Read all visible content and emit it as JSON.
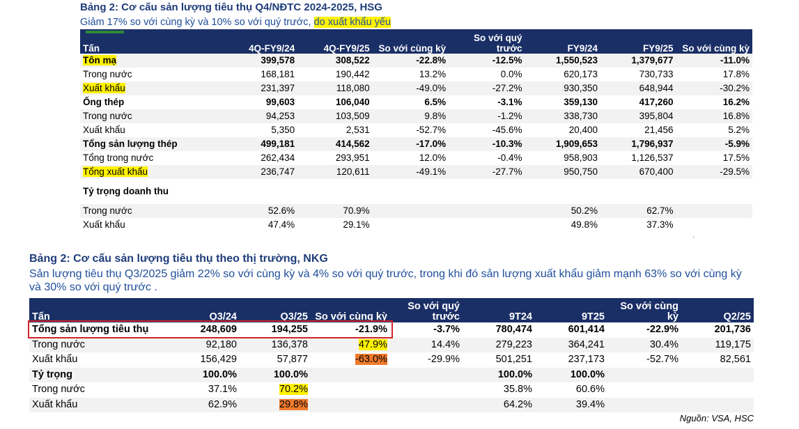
{
  "table1": {
    "title": "Bảng 2: Cơ cấu sản lượng tiêu thụ Q4/NĐTC 2024-2025, HSG",
    "subtitle_plain": "Giảm 17% so với cùng kỳ và 10% so với quý trước, ",
    "subtitle_highlight": "do xuất khẩu yếu",
    "headers": [
      "Tấn",
      "4Q-FY9/24",
      "4Q-FY9/25",
      "So với cùng kỳ",
      "So với quý trước",
      "FY9/24",
      "FY9/25",
      "So với cùng kỳ"
    ],
    "rows": [
      {
        "label": "Tôn mạ",
        "cells": [
          "399,578",
          "308,522",
          "-22.8%",
          "-12.5%",
          "1,550,523",
          "1,379,677",
          "-11.0%"
        ]
      },
      {
        "label": "Trong nước",
        "cells": [
          "168,181",
          "190,442",
          "13.2%",
          "0.0%",
          "620,173",
          "730,733",
          "17.8%"
        ]
      },
      {
        "label": "Xuất khẩu",
        "cells": [
          "231,397",
          "118,080",
          "-49.0%",
          "-27.2%",
          "930,350",
          "648,944",
          "-30.2%"
        ]
      },
      {
        "label": "Ống thép",
        "cells": [
          "99,603",
          "106,040",
          "6.5%",
          "-3.1%",
          "359,130",
          "417,260",
          "16.2%"
        ]
      },
      {
        "label": "Trong nước",
        "cells": [
          "94,253",
          "103,509",
          "9.8%",
          "-1.2%",
          "338,730",
          "395,804",
          "16.8%"
        ]
      },
      {
        "label": "Xuất khẩu",
        "cells": [
          "5,350",
          "2,531",
          "-52.7%",
          "-45.6%",
          "20,400",
          "21,456",
          "5.2%"
        ]
      },
      {
        "label": "Tổng sản lượng thép",
        "cells": [
          "499,181",
          "414,562",
          "-17.0%",
          "-10.3%",
          "1,909,653",
          "1,796,937",
          "-5.9%"
        ]
      },
      {
        "label": "Tổng trong nước",
        "cells": [
          "262,434",
          "293,951",
          "12.0%",
          "-0.4%",
          "958,903",
          "1,126,537",
          "17.5%"
        ]
      },
      {
        "label": "Tổng xuất khẩu",
        "cells": [
          "236,747",
          "120,611",
          "-49.1%",
          "-27.7%",
          "950,750",
          "670,400",
          "-29.5%"
        ]
      },
      {
        "label": "Tỷ trọng doanh thu",
        "cells": [
          "",
          "",
          "",
          "",
          "",
          "",
          ""
        ]
      },
      {
        "label": "Trong nước",
        "cells": [
          "52.6%",
          "70.9%",
          "",
          "",
          "50.2%",
          "62.7%",
          ""
        ]
      },
      {
        "label": "Xuất khẩu",
        "cells": [
          "47.4%",
          "29.1%",
          "",
          "",
          "49.8%",
          "37.3%",
          ""
        ]
      }
    ]
  },
  "table2": {
    "title": "Bảng 2: Cơ cấu sản lượng tiêu thụ theo thị trường, NKG",
    "subtitle": "Sản lượng tiêu thụ Q3/2025 giảm 22% so với cùng kỳ và 4% so với quý trước, trong khi đó sản lượng xuất khẩu giảm mạnh 63% so với cùng kỳ và 30% so với quý trước .",
    "headers": [
      "Tấn",
      "Q3/24",
      "Q3/25",
      "So với cùng kỳ",
      "So với quý trước",
      "9T24",
      "9T25",
      "So với cùng kỳ",
      "Q2/25"
    ],
    "rows": [
      {
        "label": "Tổng sản lượng tiêu thụ",
        "cells": [
          "248,609",
          "194,255",
          "-21.9%",
          "-3.7%",
          "780,474",
          "601,414",
          "-22.9%",
          "201,736"
        ]
      },
      {
        "label": "Trong nước",
        "cells": [
          "92,180",
          "136,378",
          "47.9%",
          "14.4%",
          "279,223",
          "364,241",
          "30.4%",
          "119,175"
        ]
      },
      {
        "label": "Xuất khẩu",
        "cells": [
          "156,429",
          "57,877",
          "-63.0%",
          "-29.9%",
          "501,251",
          "237,173",
          "-52.7%",
          "82,561"
        ]
      },
      {
        "label": "Tỷ trọng",
        "cells": [
          "100.0%",
          "100.0%",
          "",
          "",
          "100.0%",
          "100.0%",
          "",
          ""
        ]
      },
      {
        "label": "Trong nước",
        "cells": [
          "37.1%",
          "70.2%",
          "",
          "",
          "35.8%",
          "60.6%",
          "",
          ""
        ]
      },
      {
        "label": "Xuất khẩu",
        "cells": [
          "62.9%",
          "29.8%",
          "",
          "",
          "64.2%",
          "39.4%",
          "",
          ""
        ]
      }
    ]
  },
  "source": "Nguồn: VSA, HSC",
  "colors": {
    "header_bg": "#1a2f66",
    "title": "#1f3d7a",
    "highlight_yellow": "#fff200",
    "highlight_orange": "#f07a2c",
    "box_red": "#d0242b"
  }
}
